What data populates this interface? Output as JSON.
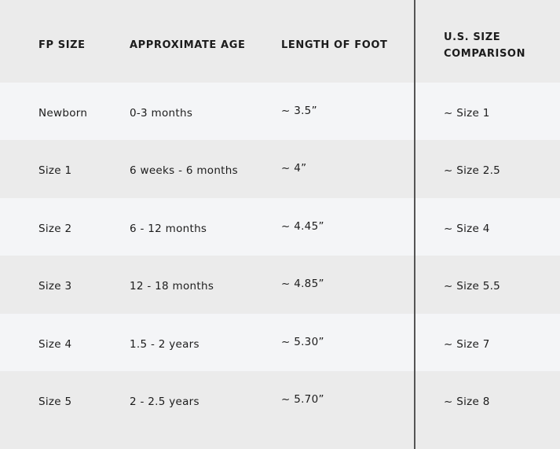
{
  "headers": [
    "FP SIZE",
    "APPROXIMATE AGE",
    "LENGTH OF FOOT",
    "U.S. SIZE",
    "COMPARISON"
  ],
  "rows": [
    [
      "Newborn",
      "0-3 months",
      "~ 3.5”",
      "~ Size 1"
    ],
    [
      "Size 1",
      "6 weeks - 6 months",
      "~ 4”",
      "~ Size 2.5"
    ],
    [
      "Size 2",
      "6 - 12 months",
      "~ 4.45”",
      "~ Size 4"
    ],
    [
      "Size 3",
      "12 - 18 months",
      "~ 4.85”",
      "~ Size 5.5"
    ],
    [
      "Size 4",
      "1.5 - 2 years",
      "~ 5.30”",
      "~ Size 7"
    ],
    [
      "Size 5",
      "2 - 2.5 years",
      "~ 5.70”",
      "~ Size 8"
    ]
  ],
  "colors": {
    "header_bg": "#ebebeb",
    "row_light": "#f4f5f7",
    "row_dark": "#ebebeb",
    "divider": "#555555"
  }
}
